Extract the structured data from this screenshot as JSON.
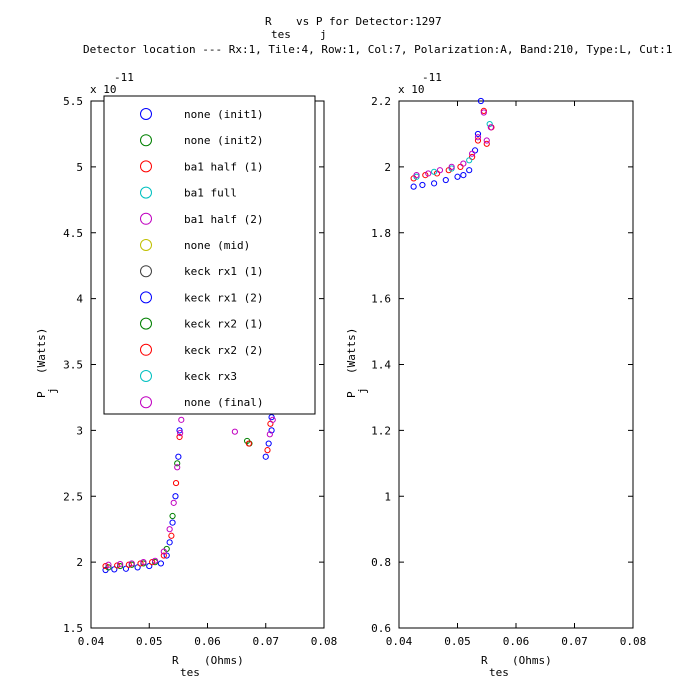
{
  "title": {
    "line1_a": "R",
    "line1_b": "vs P",
    "line1_c": "for Detector:1297",
    "sub_tes": "tes",
    "sub_j": "j",
    "line2": "Detector location --- Rx:1, Tile:4, Row:1, Col:7, Polarization:A, Band:210, Type:L, Cut:1"
  },
  "colors": {
    "init1": "#0000ff",
    "init2": "#008000",
    "ba1half1": "#ff0000",
    "ba1full": "#00c0c0",
    "ba1half2": "#c000c0",
    "mid": "#c0c000",
    "keck1": "#404040"
  },
  "chart_data": [
    {
      "type": "scatter",
      "xlabel_main": "R",
      "xlabel_sub": "tes",
      "xlabel_unit": "(Ohms)",
      "ylabel_main": "P",
      "ylabel_sub": "j",
      "ylabel_unit": "(Watts)",
      "y_exponent_base": "x 10",
      "y_exponent": "-11",
      "xlim": [
        0.04,
        0.08
      ],
      "ylim": [
        1.5,
        5.5
      ],
      "x_ticks": [
        "0.04",
        "0.05",
        "0.06",
        "0.07",
        "0.08"
      ],
      "y_ticks": [
        "1.5",
        "2",
        "2.5",
        "3",
        "3.5",
        "4",
        "4.5",
        "5",
        "5.5"
      ],
      "grid": false,
      "legend_position": "top-left",
      "legend": [
        "none (init1)",
        "none (init2)",
        "ba1 half (1)",
        "ba1 full",
        "ba1 half (2)",
        "none (mid)",
        "keck rx1 (1)",
        "keck rx1 (2)",
        "keck rx2 (1)",
        "keck rx2 (2)",
        "keck rx3",
        "none (final)"
      ],
      "legend_colors": [
        "#0000ff",
        "#008000",
        "#ff0000",
        "#00c0c0",
        "#c000c0",
        "#c0c000",
        "#404040",
        "#0000ff",
        "#008000",
        "#ff0000",
        "#00c0c0",
        "#c000c0"
      ],
      "series": [
        {
          "name": "none (init1)",
          "color": "#0000ff",
          "points": [
            [
              0.0425,
              1.94
            ],
            [
              0.044,
              1.945
            ],
            [
              0.046,
              1.95
            ],
            [
              0.048,
              1.96
            ],
            [
              0.05,
              1.97
            ],
            [
              0.052,
              1.99
            ],
            [
              0.053,
              2.05
            ],
            [
              0.0535,
              2.15
            ],
            [
              0.054,
              2.3
            ],
            [
              0.0545,
              2.5
            ],
            [
              0.055,
              2.8
            ],
            [
              0.0552,
              3.0
            ],
            [
              0.07,
              2.8
            ],
            [
              0.0705,
              2.9
            ],
            [
              0.071,
              3.0
            ],
            [
              0.071,
              3.1
            ]
          ]
        },
        {
          "name": "none (init2)",
          "color": "#008000",
          "points": [
            [
              0.043,
              1.96
            ],
            [
              0.045,
              1.97
            ],
            [
              0.047,
              1.98
            ],
            [
              0.049,
              1.99
            ],
            [
              0.051,
              2.0
            ],
            [
              0.053,
              2.1
            ],
            [
              0.054,
              2.35
            ],
            [
              0.0548,
              2.75
            ],
            [
              0.0668,
              2.92
            ],
            [
              0.0672,
              2.9
            ]
          ]
        },
        {
          "name": "ba1 half (1)",
          "color": "#ff0000",
          "points": [
            [
              0.0425,
              1.97
            ],
            [
              0.0445,
              1.975
            ],
            [
              0.0465,
              1.98
            ],
            [
              0.0485,
              1.99
            ],
            [
              0.0505,
              2.0
            ],
            [
              0.0525,
              2.05
            ],
            [
              0.0538,
              2.2
            ],
            [
              0.0546,
              2.6
            ],
            [
              0.0552,
              2.95
            ],
            [
              0.0671,
              2.9
            ],
            [
              0.0703,
              2.85
            ],
            [
              0.0708,
              3.05
            ]
          ]
        },
        {
          "name": "none (final)",
          "color": "#c000c0",
          "points": [
            [
              0.043,
              1.98
            ],
            [
              0.045,
              1.985
            ],
            [
              0.047,
              1.99
            ],
            [
              0.049,
              2.0
            ],
            [
              0.051,
              2.01
            ],
            [
              0.0525,
              2.08
            ],
            [
              0.0535,
              2.25
            ],
            [
              0.0542,
              2.45
            ],
            [
              0.0548,
              2.72
            ],
            [
              0.0553,
              2.98
            ],
            [
              0.0555,
              3.08
            ],
            [
              0.0647,
              2.99
            ],
            [
              0.0707,
              2.97
            ],
            [
              0.0712,
              3.08
            ]
          ]
        }
      ]
    },
    {
      "type": "scatter",
      "xlabel_main": "R",
      "xlabel_sub": "tes",
      "xlabel_unit": "(Ohms)",
      "ylabel_main": "P",
      "ylabel_sub": "j",
      "ylabel_unit": "(Watts)",
      "y_exponent_base": "x 10",
      "y_exponent": "-11",
      "xlim": [
        0.04,
        0.08
      ],
      "ylim": [
        0.6,
        2.2
      ],
      "x_ticks": [
        "0.04",
        "0.05",
        "0.06",
        "0.07",
        "0.08"
      ],
      "y_ticks": [
        "0.6",
        "0.8",
        "1",
        "1.2",
        "1.4",
        "1.6",
        "1.8",
        "2",
        "2.2"
      ],
      "grid": false,
      "series": [
        {
          "name": "none (init1)",
          "color": "#0000ff",
          "points": [
            [
              0.0425,
              1.94
            ],
            [
              0.044,
              1.945
            ],
            [
              0.046,
              1.95
            ],
            [
              0.048,
              1.96
            ],
            [
              0.05,
              1.97
            ],
            [
              0.051,
              1.975
            ],
            [
              0.052,
              1.99
            ],
            [
              0.053,
              2.05
            ],
            [
              0.0535,
              2.1
            ],
            [
              0.054,
              2.2
            ]
          ]
        },
        {
          "name": "ba1 half (1)",
          "color": "#ff0000",
          "points": [
            [
              0.0425,
              1.965
            ],
            [
              0.0445,
              1.975
            ],
            [
              0.0465,
              1.98
            ],
            [
              0.0485,
              1.99
            ],
            [
              0.0505,
              2.0
            ],
            [
              0.0525,
              2.03
            ],
            [
              0.0535,
              2.08
            ],
            [
              0.0545,
              2.17
            ],
            [
              0.055,
              2.07
            ],
            [
              0.0558,
              2.12
            ]
          ]
        },
        {
          "name": "ba1 full",
          "color": "#00c0c0",
          "points": [
            [
              0.043,
              1.97
            ],
            [
              0.046,
              1.985
            ],
            [
              0.049,
              1.995
            ],
            [
              0.052,
              2.02
            ],
            [
              0.0555,
              2.13
            ]
          ]
        },
        {
          "name": "none (final)",
          "color": "#c000c0",
          "points": [
            [
              0.043,
              1.975
            ],
            [
              0.045,
              1.98
            ],
            [
              0.047,
              1.99
            ],
            [
              0.049,
              2.0
            ],
            [
              0.051,
              2.01
            ],
            [
              0.0525,
              2.04
            ],
            [
              0.0535,
              2.09
            ],
            [
              0.0545,
              2.165
            ],
            [
              0.055,
              2.08
            ],
            [
              0.0557,
              2.12
            ]
          ]
        }
      ]
    }
  ]
}
